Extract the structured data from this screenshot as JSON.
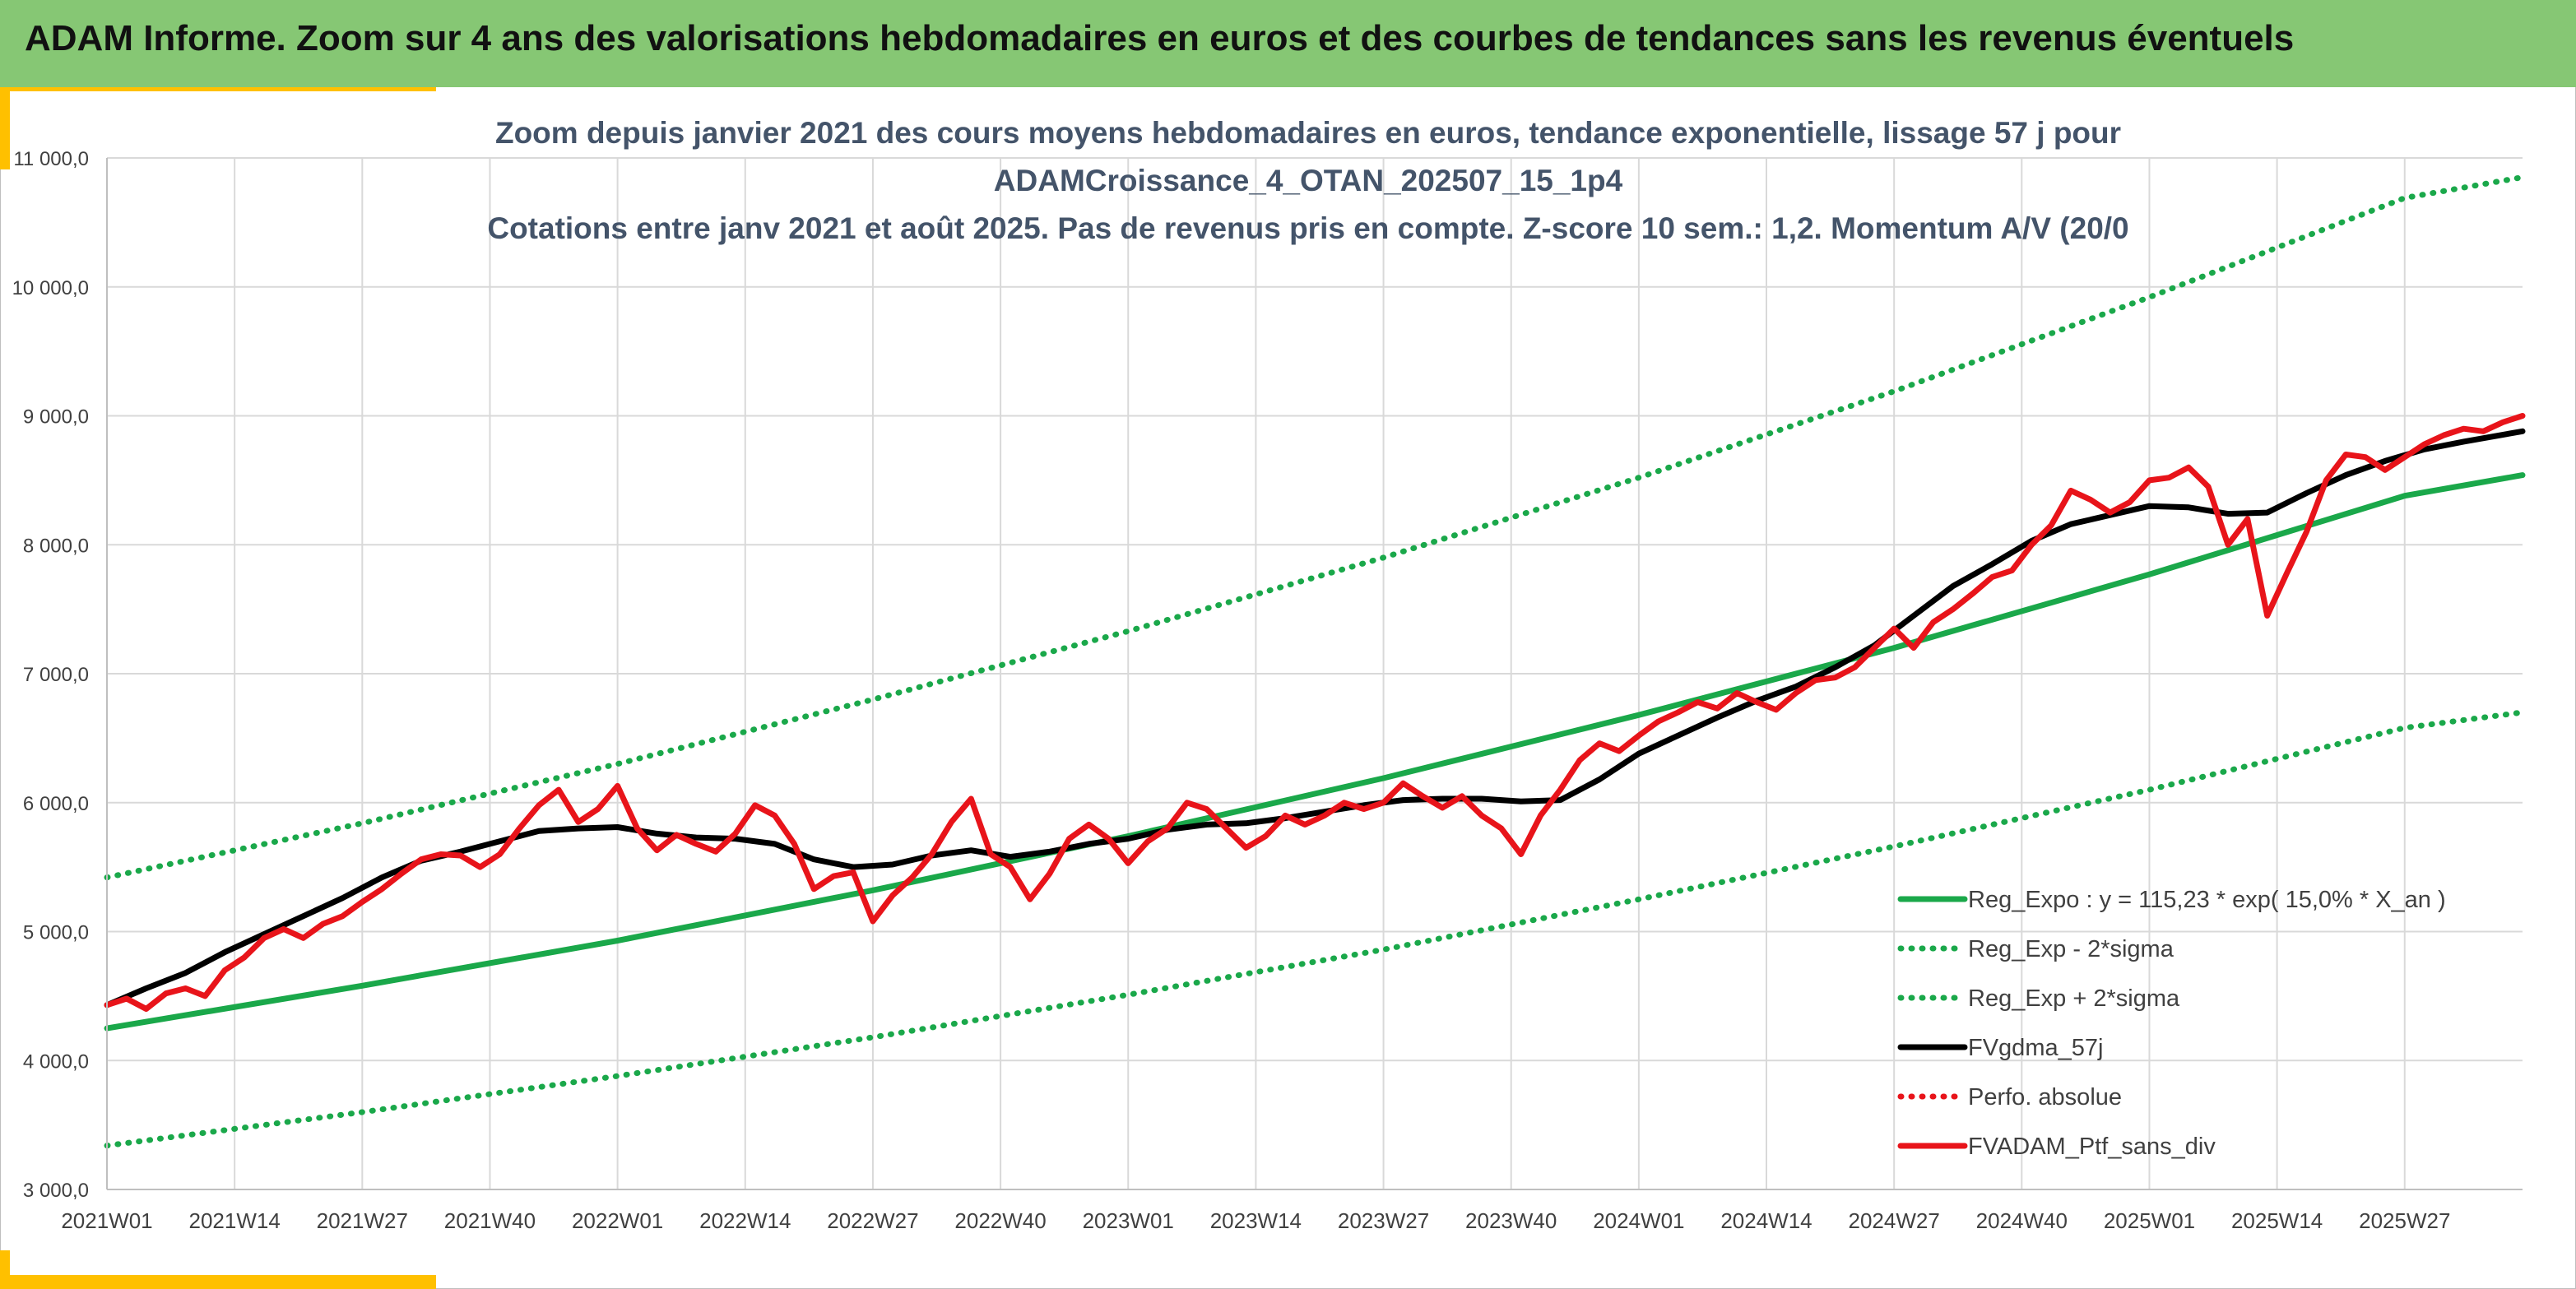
{
  "banner": {
    "title": "ADAM Informe. Zoom sur 4 ans des valorisations hebdomadaires en euros et des courbes de tendances sans les revenus éventuels"
  },
  "colors": {
    "banner_bg": "#86c774",
    "green": "#1aa84a",
    "black": "#000000",
    "red": "#e8141a",
    "accent": "#ffc000"
  },
  "chart_data": {
    "type": "line",
    "title_lines": [
      "Zoom depuis janvier 2021 des cours moyens hebdomadaires en euros, tendance exponentielle, lissage 57 j pour",
      "ADAMCroissance_4_OTAN_202507_15_1p4",
      "Cotations entre janv 2021 et août 2025. Pas de revenus pris en compte. Z-score 10 sem.: 1,2. Momentum A/V (20/0"
    ],
    "x_unit": "week index (0 = 2021W01)",
    "x_ticks": [
      {
        "label": "2021W01",
        "x": 0
      },
      {
        "label": "2021W14",
        "x": 13
      },
      {
        "label": "2021W27",
        "x": 26
      },
      {
        "label": "2021W40",
        "x": 39
      },
      {
        "label": "2022W01",
        "x": 52
      },
      {
        "label": "2022W14",
        "x": 65
      },
      {
        "label": "2022W27",
        "x": 78
      },
      {
        "label": "2022W40",
        "x": 91
      },
      {
        "label": "2023W01",
        "x": 104
      },
      {
        "label": "2023W14",
        "x": 117
      },
      {
        "label": "2023W27",
        "x": 130
      },
      {
        "label": "2023W40",
        "x": 143
      },
      {
        "label": "2024W01",
        "x": 156
      },
      {
        "label": "2024W14",
        "x": 169
      },
      {
        "label": "2024W27",
        "x": 182
      },
      {
        "label": "2024W40",
        "x": 195
      },
      {
        "label": "2025W01",
        "x": 208
      },
      {
        "label": "2025W14",
        "x": 221
      },
      {
        "label": "2025W27",
        "x": 234
      }
    ],
    "xlim": [
      0,
      246
    ],
    "y_ticks": [
      {
        "label": "3 000,0",
        "v": 3000
      },
      {
        "label": "4 000,0",
        "v": 4000
      },
      {
        "label": "5 000,0",
        "v": 5000
      },
      {
        "label": "6 000,0",
        "v": 6000
      },
      {
        "label": "7 000,0",
        "v": 7000
      },
      {
        "label": "8 000,0",
        "v": 8000
      },
      {
        "label": "9 000,0",
        "v": 9000
      },
      {
        "label": "10 000,0",
        "v": 10000
      },
      {
        "label": "11 000,0",
        "v": 11000
      }
    ],
    "ylim": [
      3000,
      11000
    ],
    "grid": true,
    "legend_position": "bottom-right",
    "series": [
      {
        "name": "Reg_Expo : y = 115,23 * exp( 15,0% *  X_an )",
        "color": "#1aa84a",
        "style": "solid",
        "x": [
          0,
          26,
          52,
          78,
          104,
          130,
          156,
          182,
          208,
          234,
          246
        ],
        "y": [
          4250,
          4580,
          4930,
          5320,
          5740,
          6190,
          6680,
          7200,
          7770,
          8380,
          8540
        ]
      },
      {
        "name": "Reg_Exp - 2*sigma",
        "color": "#1aa84a",
        "style": "dotted",
        "x": [
          0,
          26,
          52,
          78,
          104,
          130,
          156,
          182,
          208,
          234,
          246
        ],
        "y": [
          3340,
          3600,
          3880,
          4180,
          4510,
          4860,
          5250,
          5660,
          6100,
          6580,
          6700
        ]
      },
      {
        "name": "Reg_Exp + 2*sigma",
        "color": "#1aa84a",
        "style": "dotted",
        "x": [
          0,
          26,
          52,
          78,
          104,
          130,
          156,
          182,
          208,
          234,
          246
        ],
        "y": [
          5420,
          5840,
          6300,
          6800,
          7330,
          7900,
          8520,
          9190,
          9920,
          10690,
          10850
        ]
      },
      {
        "name": "FVgdma_57j",
        "color": "#000000",
        "style": "solid",
        "x": [
          0,
          4,
          8,
          12,
          16,
          20,
          24,
          28,
          32,
          36,
          40,
          44,
          48,
          52,
          56,
          60,
          64,
          68,
          72,
          76,
          80,
          84,
          88,
          92,
          96,
          100,
          104,
          108,
          112,
          116,
          120,
          124,
          128,
          132,
          136,
          140,
          144,
          148,
          152,
          156,
          160,
          164,
          168,
          172,
          176,
          180,
          184,
          188,
          192,
          196,
          200,
          204,
          208,
          212,
          216,
          220,
          224,
          228,
          232,
          236,
          240,
          246
        ],
        "y": [
          4430,
          4560,
          4680,
          4840,
          4980,
          5120,
          5260,
          5420,
          5550,
          5620,
          5700,
          5780,
          5800,
          5810,
          5760,
          5730,
          5720,
          5680,
          5560,
          5500,
          5520,
          5590,
          5630,
          5580,
          5620,
          5680,
          5720,
          5790,
          5830,
          5840,
          5880,
          5930,
          5980,
          6020,
          6030,
          6030,
          6010,
          6020,
          6180,
          6380,
          6520,
          6660,
          6790,
          6900,
          7050,
          7220,
          7450,
          7680,
          7850,
          8030,
          8160,
          8230,
          8300,
          8290,
          8240,
          8250,
          8400,
          8540,
          8650,
          8740,
          8800,
          8880
        ]
      },
      {
        "name": "Perfo. absolue",
        "color": "#e8141a",
        "style": "dotted",
        "x": [],
        "y": []
      },
      {
        "name": "FVADAM_Ptf_sans_div",
        "color": "#e8141a",
        "style": "solid",
        "x": [
          0,
          2,
          4,
          6,
          8,
          10,
          12,
          14,
          16,
          18,
          20,
          22,
          24,
          26,
          28,
          30,
          32,
          34,
          36,
          38,
          40,
          42,
          44,
          46,
          48,
          50,
          52,
          54,
          56,
          58,
          60,
          62,
          64,
          66,
          68,
          70,
          72,
          74,
          76,
          78,
          80,
          82,
          84,
          86,
          88,
          90,
          92,
          94,
          96,
          98,
          100,
          102,
          104,
          106,
          108,
          110,
          112,
          114,
          116,
          118,
          120,
          122,
          124,
          126,
          128,
          130,
          132,
          134,
          136,
          138,
          140,
          142,
          144,
          146,
          148,
          150,
          152,
          154,
          156,
          158,
          160,
          162,
          164,
          166,
          168,
          170,
          172,
          174,
          176,
          178,
          180,
          182,
          184,
          186,
          188,
          190,
          192,
          194,
          196,
          198,
          200,
          202,
          204,
          206,
          208,
          210,
          212,
          214,
          216,
          218,
          220,
          222,
          224,
          226,
          228,
          230,
          232,
          234,
          236,
          238,
          240,
          242,
          244,
          246
        ],
        "y": [
          4430,
          4480,
          4400,
          4520,
          4560,
          4500,
          4700,
          4800,
          4950,
          5020,
          4950,
          5060,
          5120,
          5230,
          5330,
          5450,
          5560,
          5600,
          5590,
          5500,
          5600,
          5800,
          5980,
          6100,
          5850,
          5950,
          6130,
          5800,
          5630,
          5750,
          5680,
          5620,
          5760,
          5980,
          5900,
          5680,
          5330,
          5430,
          5460,
          5080,
          5280,
          5420,
          5600,
          5850,
          6030,
          5600,
          5500,
          5250,
          5450,
          5720,
          5830,
          5720,
          5530,
          5700,
          5800,
          6000,
          5950,
          5800,
          5650,
          5740,
          5900,
          5830,
          5900,
          6000,
          5950,
          6000,
          6150,
          6050,
          5960,
          6050,
          5900,
          5800,
          5600,
          5900,
          6100,
          6330,
          6460,
          6400,
          6520,
          6630,
          6700,
          6780,
          6730,
          6850,
          6780,
          6720,
          6850,
          6950,
          6970,
          7050,
          7200,
          7350,
          7200,
          7400,
          7500,
          7620,
          7750,
          7800,
          8000,
          8150,
          8420,
          8350,
          8250,
          8330,
          8500,
          8520,
          8600,
          8450,
          8000,
          8200,
          7450,
          7780,
          8100,
          8500,
          8700,
          8680,
          8580,
          8680,
          8780,
          8850,
          8900,
          8880,
          8950,
          9000
        ]
      }
    ]
  }
}
